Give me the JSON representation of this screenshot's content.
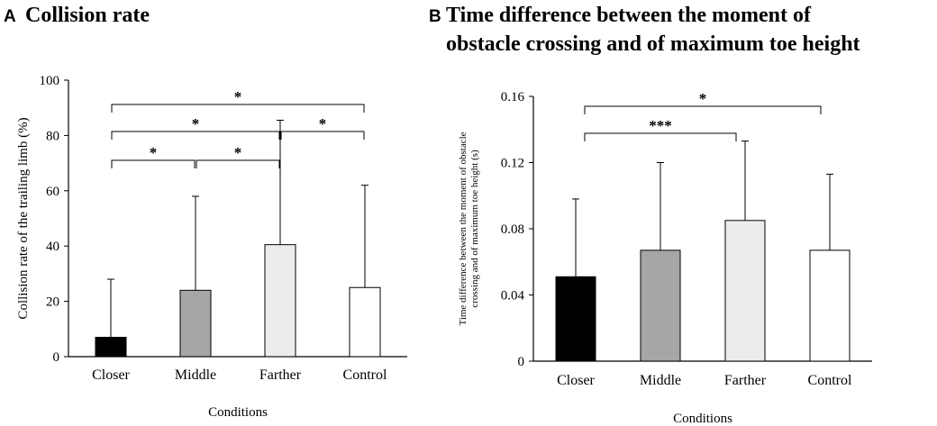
{
  "panels": [
    {
      "letter": "A",
      "title": "Collision rate"
    },
    {
      "letter": "B",
      "title_lines": [
        "Time difference between the moment of",
        "obstacle crossing and of maximum toe height"
      ]
    }
  ],
  "chart_data": [
    {
      "type": "bar",
      "title": "Collision rate",
      "xlabel": "Conditions",
      "ylabel": "Collision  rate of the trailing  limb  (%)",
      "ylim": [
        0,
        100
      ],
      "yticks": [
        0,
        20,
        40,
        60,
        80,
        100
      ],
      "ytick_labels": [
        "0",
        "20",
        "40",
        "60",
        "80",
        "100"
      ],
      "categories": [
        "Closer",
        "Middle",
        "Farther",
        "Control"
      ],
      "values": [
        7,
        24,
        40.5,
        25
      ],
      "errors": [
        21,
        34,
        45,
        37
      ],
      "bar_colors": [
        "#000000",
        "#a6a6a6",
        "#ececec",
        "#ffffff"
      ],
      "significance": [
        {
          "from": 0,
          "to": 1,
          "label": "*"
        },
        {
          "from": 1,
          "to": 2,
          "label": "*"
        },
        {
          "from": 0,
          "to": 2,
          "label": "*"
        },
        {
          "from": 2,
          "to": 3,
          "label": "*"
        },
        {
          "from": 0,
          "to": 3,
          "label": "*"
        }
      ]
    },
    {
      "type": "bar",
      "title": "Time difference between the moment of obstacle crossing and of maximum toe height",
      "xlabel": "Conditions",
      "ylabel_lines": [
        "Time  difference  between the moment  of  obstacle",
        "crossing and of maximum  toe  height (s)"
      ],
      "ylim": [
        0,
        0.16
      ],
      "yticks": [
        0,
        0.04,
        0.08,
        0.12,
        0.16
      ],
      "ytick_labels": [
        "0",
        "0.04",
        "0.08",
        "0.12",
        "0.16"
      ],
      "categories": [
        "Closer",
        "Middle",
        "Farther",
        "Control"
      ],
      "values": [
        0.051,
        0.067,
        0.085,
        0.067
      ],
      "errors": [
        0.047,
        0.053,
        0.048,
        0.046
      ],
      "bar_colors": [
        "#000000",
        "#a6a6a6",
        "#ececec",
        "#ffffff"
      ],
      "significance": [
        {
          "from": 0,
          "to": 2,
          "label": "***"
        },
        {
          "from": 0,
          "to": 3,
          "label": "*"
        }
      ]
    }
  ]
}
